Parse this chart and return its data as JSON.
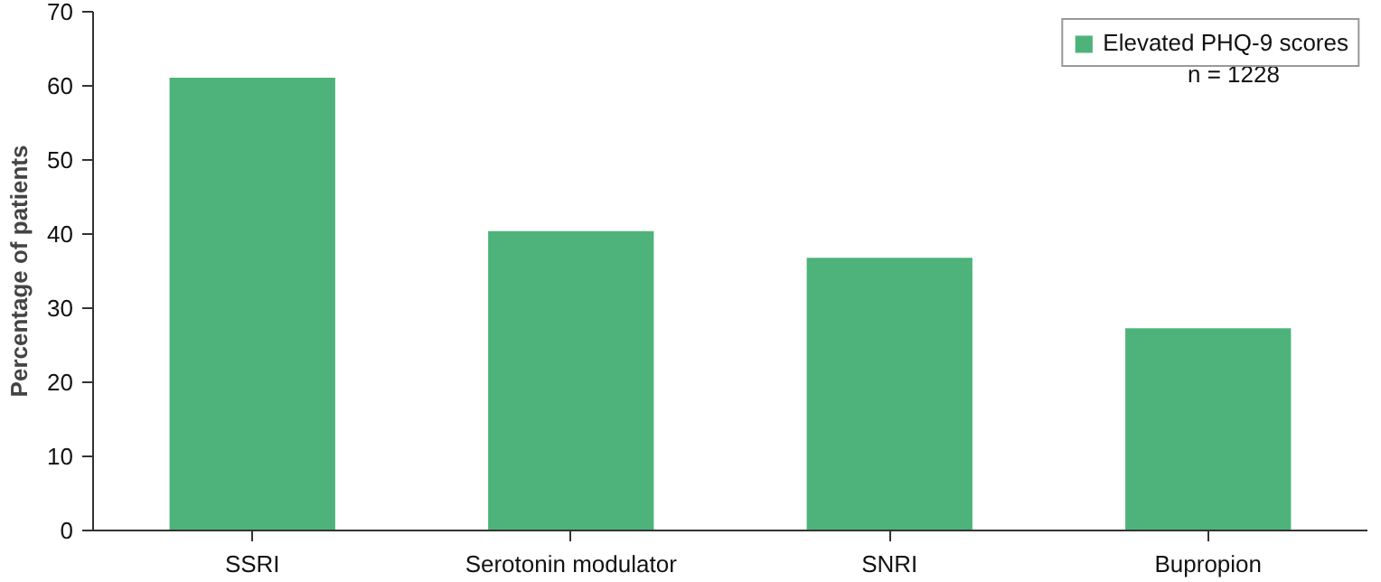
{
  "chart_data": {
    "type": "bar",
    "ylabel": "Percentage of patients",
    "categories": [
      "SSRI",
      "Serotonin modulator",
      "SNRI",
      "Bupropion"
    ],
    "series": [
      {
        "name": "Elevated PHQ-9 scores",
        "color": "#4db37a",
        "values": [
          61.1,
          40.4,
          36.8,
          27.3
        ]
      }
    ],
    "ylim": [
      0,
      70
    ],
    "yticks": [
      0,
      10,
      20,
      30,
      40,
      50,
      60,
      70
    ],
    "grid": false,
    "legend": "top right",
    "annotations": [
      "n = 1228"
    ]
  }
}
